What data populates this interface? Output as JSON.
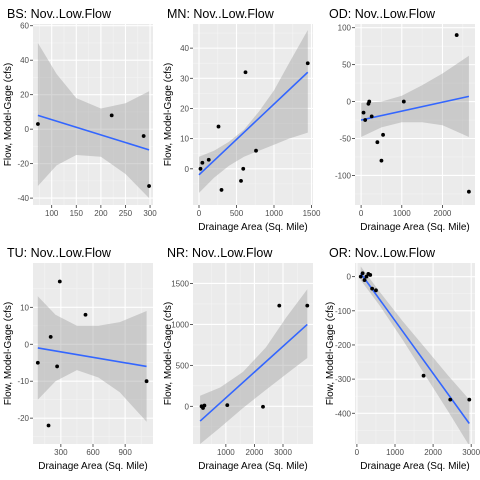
{
  "figure": {
    "style": {
      "panel_bg": "#EBEBEB",
      "grid_major": "#FFFFFF",
      "point": "#000000",
      "line": "#3366FF",
      "band": "#999999"
    }
  },
  "chart_data": [
    {
      "type": "scatter",
      "title": "BS: Nov..Low.Flow",
      "xlabel": "",
      "ylabel": "Flow, Model-Gage (cfs)",
      "xlim": [
        62,
        306
      ],
      "ylim": [
        -44,
        61
      ],
      "xticks": [
        100,
        150,
        200,
        250,
        300
      ],
      "yticks": [
        -40,
        -20,
        0,
        20,
        40,
        60
      ],
      "points": [
        {
          "x": 72,
          "y": 3
        },
        {
          "x": 222,
          "y": 8
        },
        {
          "x": 287,
          "y": -4
        },
        {
          "x": 298,
          "y": -33
        }
      ],
      "fit": {
        "x": [
          72,
          298
        ],
        "y": [
          8,
          -12
        ]
      },
      "band": {
        "x": [
          72,
          110,
          150,
          200,
          250,
          298
        ],
        "upper": [
          50,
          32,
          18,
          12,
          15,
          22
        ],
        "lower": [
          -33,
          -21,
          -15,
          -16,
          -26,
          -40
        ]
      }
    },
    {
      "type": "scatter",
      "title": "MN: Nov..Low.Flow",
      "xlabel": "Drainage Area (Sq. Mile)",
      "ylabel": "Flow, Model-Gage (cfs)",
      "xlim": [
        -80,
        1520
      ],
      "ylim": [
        -12,
        48
      ],
      "xticks": [
        0,
        500,
        1000,
        1500
      ],
      "yticks": [
        0,
        10,
        20,
        30,
        40
      ],
      "points": [
        {
          "x": 20,
          "y": 0
        },
        {
          "x": 45,
          "y": 2
        },
        {
          "x": 130,
          "y": 3
        },
        {
          "x": 260,
          "y": 14
        },
        {
          "x": 300,
          "y": -7
        },
        {
          "x": 560,
          "y": -4
        },
        {
          "x": 590,
          "y": 0
        },
        {
          "x": 620,
          "y": 32
        },
        {
          "x": 760,
          "y": 6
        },
        {
          "x": 1450,
          "y": 35
        }
      ],
      "fit": {
        "x": [
          0,
          1450
        ],
        "y": [
          -2,
          32
        ]
      },
      "band": {
        "x": [
          0,
          200,
          400,
          600,
          800,
          1000,
          1200,
          1450
        ],
        "upper": [
          4,
          6,
          9,
          13,
          19,
          26,
          35,
          46
        ],
        "lower": [
          -8,
          -3,
          1,
          4,
          6,
          8,
          10,
          12
        ]
      }
    },
    {
      "type": "scatter",
      "title": "OD: Nov..Low.Flow",
      "xlabel": "Drainage Area (Sq. Mile)",
      "ylabel": "",
      "xlim": [
        -150,
        2800
      ],
      "ylim": [
        -140,
        105
      ],
      "xticks": [
        0,
        1000,
        2000
      ],
      "yticks": [
        -100,
        -50,
        0,
        50,
        100
      ],
      "points": [
        {
          "x": 60,
          "y": -15
        },
        {
          "x": 100,
          "y": -25
        },
        {
          "x": 180,
          "y": -3
        },
        {
          "x": 200,
          "y": 0
        },
        {
          "x": 260,
          "y": -20
        },
        {
          "x": 400,
          "y": -55
        },
        {
          "x": 500,
          "y": -80
        },
        {
          "x": 540,
          "y": -45
        },
        {
          "x": 1050,
          "y": 0
        },
        {
          "x": 2350,
          "y": 90
        },
        {
          "x": 2650,
          "y": -122
        }
      ],
      "fit": {
        "x": [
          0,
          2650
        ],
        "y": [
          -25,
          7
        ]
      },
      "band": {
        "x": [
          0,
          500,
          1000,
          1500,
          2000,
          2650
        ],
        "upper": [
          -2,
          0,
          8,
          22,
          38,
          62
        ],
        "lower": [
          -48,
          -35,
          -28,
          -28,
          -32,
          -48
        ]
      }
    },
    {
      "type": "scatter",
      "title": "TU: Nov..Low.Flow",
      "xlabel": "Drainage Area (Sq. Mile)",
      "ylabel": "Flow, Model-Gage (cfs)",
      "xlim": [
        40,
        1160
      ],
      "ylim": [
        -27,
        22
      ],
      "xticks": [
        300,
        600,
        900
      ],
      "yticks": [
        -20,
        -10,
        0,
        10
      ],
      "points": [
        {
          "x": 85,
          "y": -5
        },
        {
          "x": 185,
          "y": -22
        },
        {
          "x": 205,
          "y": 2
        },
        {
          "x": 265,
          "y": -6
        },
        {
          "x": 290,
          "y": 17
        },
        {
          "x": 530,
          "y": 8
        },
        {
          "x": 1100,
          "y": -10
        }
      ],
      "fit": {
        "x": [
          85,
          1100
        ],
        "y": [
          -1,
          -6
        ]
      },
      "band": {
        "x": [
          85,
          250,
          450,
          650,
          850,
          1100
        ],
        "upper": [
          13,
          8,
          5,
          5,
          6,
          9
        ],
        "lower": [
          -15,
          -10,
          -7,
          -9,
          -13,
          -21
        ]
      }
    },
    {
      "type": "scatter",
      "title": "NR: Nov..Low.Flow",
      "xlabel": "Drainage Area (Sq. Mile)",
      "ylabel": "Flow, Model-Gage (cfs)",
      "xlim": [
        -150,
        4050
      ],
      "ylim": [
        -460,
        1750
      ],
      "xticks": [
        1000,
        2000,
        3000
      ],
      "yticks": [
        0,
        500,
        1000,
        1500
      ],
      "points": [
        {
          "x": 150,
          "y": 0
        },
        {
          "x": 200,
          "y": -20
        },
        {
          "x": 250,
          "y": 10
        },
        {
          "x": 1050,
          "y": 15
        },
        {
          "x": 2300,
          "y": -5
        },
        {
          "x": 2870,
          "y": 1230
        },
        {
          "x": 3850,
          "y": 1230
        }
      ],
      "fit": {
        "x": [
          100,
          3850
        ],
        "y": [
          -180,
          1000
        ]
      },
      "band": {
        "x": [
          100,
          800,
          1600,
          2400,
          3100,
          3850
        ],
        "upper": [
          130,
          230,
          420,
          720,
          1080,
          1430
        ],
        "lower": [
          -460,
          -260,
          -20,
          200,
          390,
          590
        ]
      }
    },
    {
      "type": "scatter",
      "title": "OR: Nov..Low.Flow",
      "xlabel": "Drainage Area (Sq. Mile)",
      "ylabel": "Flow, Model-Gage (cfs)",
      "xlim": [
        -50,
        3100
      ],
      "ylim": [
        -490,
        40
      ],
      "xticks": [
        0,
        1000,
        2000,
        3000
      ],
      "yticks": [
        -400,
        -300,
        -200,
        -100,
        0
      ],
      "points": [
        {
          "x": 100,
          "y": 0
        },
        {
          "x": 150,
          "y": 10
        },
        {
          "x": 200,
          "y": -10
        },
        {
          "x": 250,
          "y": 0
        },
        {
          "x": 300,
          "y": 8
        },
        {
          "x": 350,
          "y": 5
        },
        {
          "x": 400,
          "y": -35
        },
        {
          "x": 500,
          "y": -40
        },
        {
          "x": 1750,
          "y": -290
        },
        {
          "x": 2450,
          "y": -360
        },
        {
          "x": 2950,
          "y": -360
        }
      ],
      "fit": {
        "x": [
          100,
          2950
        ],
        "y": [
          10,
          -430
        ]
      },
      "band": {
        "x": [
          100,
          600,
          1200,
          1800,
          2400,
          2950
        ],
        "upper": [
          30,
          -45,
          -130,
          -210,
          -290,
          -360
        ],
        "lower": [
          -10,
          -85,
          -185,
          -290,
          -395,
          -495
        ]
      }
    }
  ]
}
